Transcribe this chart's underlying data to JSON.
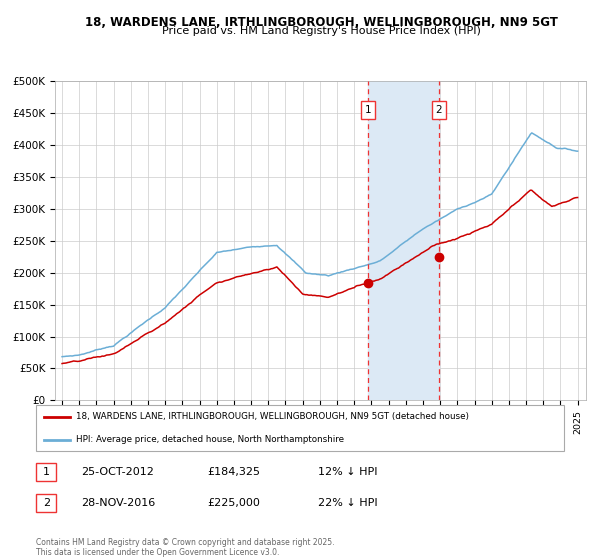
{
  "title_line1": "18, WARDENS LANE, IRTHLINGBOROUGH, WELLINGBOROUGH, NN9 5GT",
  "title_line2": "Price paid vs. HM Land Registry's House Price Index (HPI)",
  "ylim": [
    0,
    500000
  ],
  "yticks": [
    0,
    50000,
    100000,
    150000,
    200000,
    250000,
    300000,
    350000,
    400000,
    450000,
    500000
  ],
  "ytick_labels": [
    "£0",
    "£50K",
    "£100K",
    "£150K",
    "£200K",
    "£250K",
    "£300K",
    "£350K",
    "£400K",
    "£450K",
    "£500K"
  ],
  "hpi_color": "#6baed6",
  "price_color": "#cc0000",
  "sale1_x": 2012.82,
  "sale1_price": 184325,
  "sale1_label": "1",
  "sale2_x": 2016.91,
  "sale2_price": 225000,
  "sale2_label": "2",
  "shade_color": "#dce9f5",
  "vline_color": "#ee3333",
  "background_color": "#ffffff",
  "grid_color": "#cccccc",
  "legend_label_red": "18, WARDENS LANE, IRTHLINGBOROUGH, WELLINGBOROUGH, NN9 5GT (detached house)",
  "legend_label_blue": "HPI: Average price, detached house, North Northamptonshire",
  "footnote": "Contains HM Land Registry data © Crown copyright and database right 2025.\nThis data is licensed under the Open Government Licence v3.0.",
  "table_rows": [
    {
      "num": "1",
      "date": "25-OCT-2012",
      "price": "£184,325",
      "pct": "12% ↓ HPI"
    },
    {
      "num": "2",
      "date": "28-NOV-2016",
      "price": "£225,000",
      "pct": "22% ↓ HPI"
    }
  ]
}
